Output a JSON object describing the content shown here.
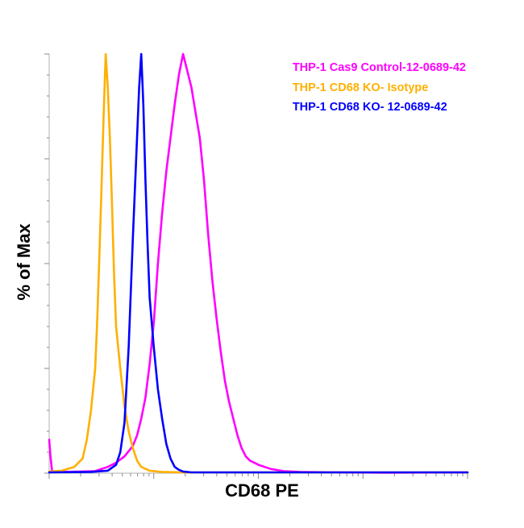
{
  "chart_data": {
    "type": "line",
    "subtype": "histogram-overlay",
    "xlabel": "CD68 PE",
    "ylabel": "% of Max",
    "x_scale": "log",
    "x_tick_labels": "none",
    "y_tick_labels": "none",
    "xlim": [
      0,
      1
    ],
    "ylim": [
      0,
      100
    ],
    "grid": false,
    "legend_position": "top-right",
    "series": [
      {
        "name": "THP-1 Cas9 Control-12-0689-42",
        "color": "#ff00ff",
        "x": [
          0.0,
          0.003,
          0.007,
          0.03,
          0.08,
          0.11,
          0.14,
          0.16,
          0.18,
          0.2,
          0.21,
          0.22,
          0.23,
          0.24,
          0.25,
          0.26,
          0.27,
          0.28,
          0.29,
          0.3,
          0.31,
          0.32,
          0.33,
          0.34,
          0.35,
          0.36,
          0.37,
          0.38,
          0.39,
          0.4,
          0.41,
          0.42,
          0.43,
          0.44,
          0.45,
          0.46,
          0.47,
          0.48,
          0.5,
          0.53,
          0.56,
          0.6,
          0.7,
          0.8,
          1.0
        ],
        "values": [
          8,
          4,
          0.5,
          0.3,
          0.4,
          0.5,
          1.5,
          2.5,
          4,
          6.5,
          9,
          13,
          18,
          26,
          36,
          50,
          62,
          72,
          80,
          88,
          95,
          100,
          96,
          92,
          86,
          80,
          70,
          57,
          46,
          37,
          29,
          22,
          17,
          13,
          9,
          6,
          4,
          3,
          2,
          1,
          0.5,
          0.3,
          0.2,
          0.1,
          0.2
        ]
      },
      {
        "name": "THP-1 CD68 KO- Isotype",
        "color": "#ffb000",
        "x": [
          0.0,
          0.03,
          0.06,
          0.08,
          0.09,
          0.1,
          0.11,
          0.115,
          0.12,
          0.125,
          0.13,
          0.135,
          0.14,
          0.145,
          0.15,
          0.155,
          0.16,
          0.17,
          0.18,
          0.19,
          0.2,
          0.21,
          0.22,
          0.24,
          0.27,
          0.32,
          0.4,
          0.55,
          0.75,
          1.0
        ],
        "values": [
          0.4,
          0.6,
          1.5,
          3.5,
          8,
          15,
          25,
          37,
          52,
          68,
          85,
          100,
          92,
          80,
          65,
          48,
          35,
          25,
          16,
          10,
          6,
          3,
          1.5,
          0.6,
          0.3,
          0.2,
          0.2,
          0.2,
          0.2,
          0.2
        ]
      },
      {
        "name": "THP-1 CD68 KO- 12-0689-42",
        "color": "#0000ff",
        "x": [
          0.0,
          0.1,
          0.14,
          0.16,
          0.17,
          0.18,
          0.19,
          0.2,
          0.21,
          0.215,
          0.22,
          0.225,
          0.23,
          0.235,
          0.24,
          0.25,
          0.26,
          0.27,
          0.28,
          0.29,
          0.3,
          0.31,
          0.32,
          0.34,
          0.37,
          0.42,
          0.55,
          1.0
        ],
        "values": [
          0.2,
          0.3,
          0.6,
          2,
          5,
          12,
          30,
          56,
          80,
          92,
          100,
          88,
          70,
          55,
          42,
          30,
          20,
          13,
          7,
          3.5,
          1.5,
          0.8,
          0.4,
          0.2,
          0.2,
          0.2,
          0.2,
          0.2
        ]
      }
    ]
  }
}
